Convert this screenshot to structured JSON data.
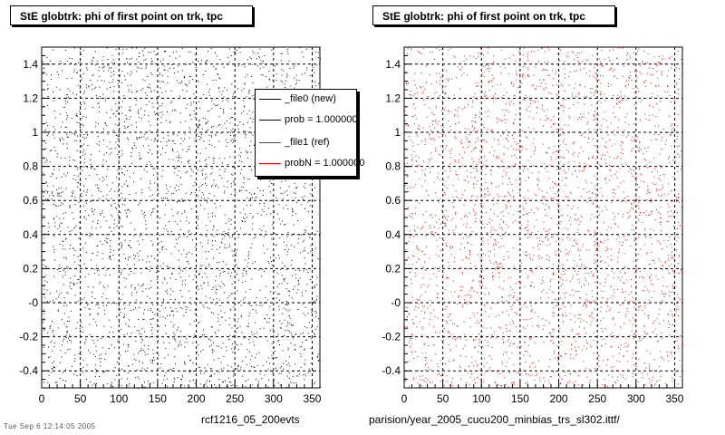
{
  "chart_data": [
    {
      "type": "scatter",
      "title": "StE globtrk: phi of first point on trk, tpc",
      "xlim": [
        0,
        360
      ],
      "ylim": [
        -0.5,
        1.5
      ],
      "x_ticks": [
        "0",
        "50",
        "100",
        "150",
        "200",
        "250",
        "300",
        "350"
      ],
      "y_ticks": [
        "-0.4",
        "-0.2",
        "-0",
        "0.2",
        "0.4",
        "0.6",
        "0.8",
        "1",
        "1.2",
        "1.4"
      ],
      "grid": true,
      "marker_color": "#000000",
      "distribution": "uniform random points over x 0–360, y -0.5–1.5",
      "caption": "rcf1216_05_200evts",
      "legend": {
        "placement": "top-right",
        "entries": [
          {
            "label": "_file0 (new)",
            "color": "#000000"
          },
          {
            "label": "prob = 1.000000",
            "color": "#000000"
          },
          {
            "label": "_file1 (ref)",
            "color": "#ff0000"
          },
          {
            "label": "probN = 1.000000",
            "color": "#ff0000"
          }
        ]
      }
    },
    {
      "type": "scatter",
      "title": "StE globtrk: phi of first point on trk, tpc",
      "xlim": [
        0,
        360
      ],
      "ylim": [
        -0.5,
        1.5
      ],
      "x_ticks": [
        "0",
        "50",
        "100",
        "150",
        "200",
        "250",
        "300",
        "350"
      ],
      "y_ticks": [
        "-0.4",
        "-0.2",
        "-0",
        "0.2",
        "0.4",
        "0.6",
        "0.8",
        "1",
        "1.2",
        "1.4"
      ],
      "grid": true,
      "marker_color": "#ff0000",
      "distribution": "uniform random points over x 0–360, y -0.5–1.5",
      "caption": "parision/year_2005_cucu200_minbias_trs_sl302.ittf/"
    }
  ],
  "footer_stamp": "Tue Sep 6 12:14:05 2005"
}
